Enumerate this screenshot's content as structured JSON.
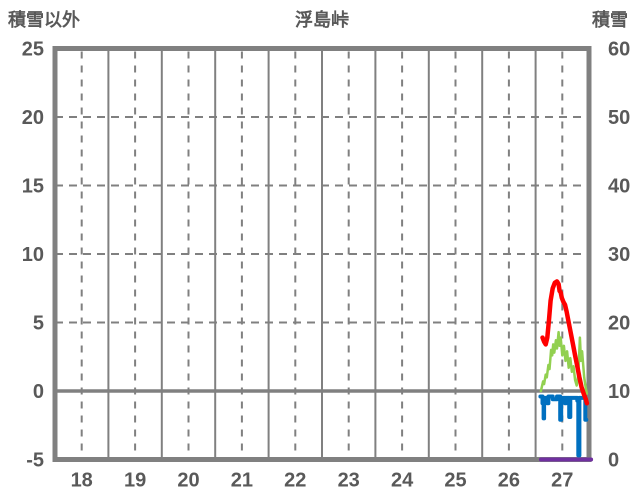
{
  "header": {
    "left_axis_label": "積雪以外",
    "title": "浮島峠",
    "right_axis_label": "積雪"
  },
  "colors": {
    "background": "#ffffff",
    "grid": "#808080",
    "text": "#595959",
    "red": "#ff0000",
    "green": "#92d050",
    "blue": "#0070c0",
    "purple": "#7030a0"
  },
  "chart_data": {
    "type": "line",
    "title": "浮島峠",
    "x_axis": {
      "tick_values": [
        18,
        19,
        20,
        21,
        22,
        23,
        24,
        25,
        26,
        27
      ],
      "range": [
        17.5,
        27.5
      ],
      "solid_gridlines_at_day_boundaries": true,
      "dashed_gridlines_at_day_centers": true
    },
    "left_axis": {
      "label": "積雪以外",
      "range": [
        -5,
        25
      ],
      "tick_values": [
        25,
        20,
        15,
        10,
        5,
        0,
        -5
      ]
    },
    "right_axis": {
      "label": "積雪",
      "range": [
        0,
        60
      ],
      "tick_values": [
        60,
        50,
        40,
        30,
        20,
        10,
        0
      ]
    },
    "grid": {
      "h_dashed_left_values": [
        20,
        15,
        10,
        5
      ],
      "zero_line_left_value": 0,
      "color": "#808080"
    },
    "legend": "none",
    "series": [
      {
        "name": "blue-line",
        "color": "#0070c0",
        "width": 4,
        "axis": "left",
        "points": [
          [
            26.59,
            -0.4
          ],
          [
            26.63,
            -0.4
          ],
          [
            26.63,
            -0.9
          ],
          [
            26.65,
            -0.9
          ],
          [
            26.65,
            -2.0
          ],
          [
            26.66,
            -2.0
          ],
          [
            26.66,
            -0.5
          ],
          [
            26.72,
            -0.5
          ],
          [
            26.72,
            -0.9
          ],
          [
            26.74,
            -0.9
          ],
          [
            26.74,
            -0.4
          ],
          [
            26.82,
            -0.4
          ],
          [
            26.82,
            -0.6
          ],
          [
            26.9,
            -0.6
          ],
          [
            26.9,
            -0.4
          ],
          [
            26.96,
            -0.4
          ],
          [
            26.96,
            -2.1
          ],
          [
            26.98,
            -2.1
          ],
          [
            26.98,
            -0.5
          ],
          [
            27.05,
            -0.5
          ],
          [
            27.05,
            -0.9
          ],
          [
            27.07,
            -0.9
          ],
          [
            27.07,
            -0.5
          ],
          [
            27.13,
            -0.5
          ],
          [
            27.13,
            -1.9
          ],
          [
            27.15,
            -1.9
          ],
          [
            27.15,
            -0.5
          ],
          [
            27.28,
            -0.5
          ],
          [
            27.28,
            -0.7
          ],
          [
            27.3,
            -0.7
          ],
          [
            27.3,
            -4.7
          ],
          [
            27.32,
            -4.7
          ],
          [
            27.32,
            -0.5
          ],
          [
            27.43,
            -0.5
          ],
          [
            27.43,
            -2.1
          ],
          [
            27.45,
            -2.1
          ]
        ]
      },
      {
        "name": "purple-line",
        "color": "#7030a0",
        "width": 4,
        "axis": "right",
        "points": [
          [
            26.6,
            0
          ],
          [
            27.54,
            0
          ]
        ]
      },
      {
        "name": "green-line",
        "color": "#92d050",
        "width": 2.5,
        "axis": "left",
        "points": [
          [
            26.6,
            0.0
          ],
          [
            26.64,
            0.7
          ],
          [
            26.66,
            0.5
          ],
          [
            26.69,
            1.2
          ],
          [
            26.71,
            1.0
          ],
          [
            26.74,
            1.9
          ],
          [
            26.76,
            1.6
          ],
          [
            26.79,
            3.0
          ],
          [
            26.81,
            2.6
          ],
          [
            26.83,
            3.4
          ],
          [
            26.85,
            2.8
          ],
          [
            26.88,
            3.7
          ],
          [
            26.9,
            3.1
          ],
          [
            26.93,
            4.3
          ],
          [
            26.95,
            3.3
          ],
          [
            26.97,
            3.9
          ],
          [
            27.0,
            2.6
          ],
          [
            27.03,
            3.3
          ],
          [
            27.06,
            2.2
          ],
          [
            27.09,
            2.9
          ],
          [
            27.12,
            1.7
          ],
          [
            27.15,
            2.4
          ],
          [
            27.18,
            1.4
          ],
          [
            27.21,
            1.8
          ],
          [
            27.24,
            0.8
          ],
          [
            27.27,
            0.4
          ],
          [
            27.3,
            1.2
          ],
          [
            27.33,
            3.9
          ],
          [
            27.35,
            2.2
          ],
          [
            27.37,
            2.9
          ],
          [
            27.41,
            1.0
          ],
          [
            27.44,
            0.2
          ],
          [
            27.46,
            -0.2
          ]
        ]
      },
      {
        "name": "red-line",
        "color": "#ff0000",
        "width": 4.5,
        "axis": "left",
        "points": [
          [
            26.63,
            3.9
          ],
          [
            26.66,
            3.6
          ],
          [
            26.69,
            3.4
          ],
          [
            26.72,
            3.9
          ],
          [
            26.75,
            5.2
          ],
          [
            26.78,
            6.6
          ],
          [
            26.82,
            7.5
          ],
          [
            26.86,
            7.9
          ],
          [
            26.9,
            8.0
          ],
          [
            26.93,
            7.8
          ],
          [
            26.95,
            7.3
          ],
          [
            26.97,
            7.2
          ],
          [
            26.99,
            6.8
          ],
          [
            27.02,
            6.5
          ],
          [
            27.05,
            6.3
          ],
          [
            27.08,
            5.8
          ],
          [
            27.11,
            5.2
          ],
          [
            27.14,
            4.6
          ],
          [
            27.17,
            4.0
          ],
          [
            27.2,
            3.4
          ],
          [
            27.24,
            2.6
          ],
          [
            27.28,
            1.8
          ],
          [
            27.32,
            1.0
          ],
          [
            27.36,
            0.3
          ],
          [
            27.4,
            -0.2
          ],
          [
            27.44,
            -0.6
          ],
          [
            27.46,
            -0.9
          ]
        ]
      }
    ]
  }
}
